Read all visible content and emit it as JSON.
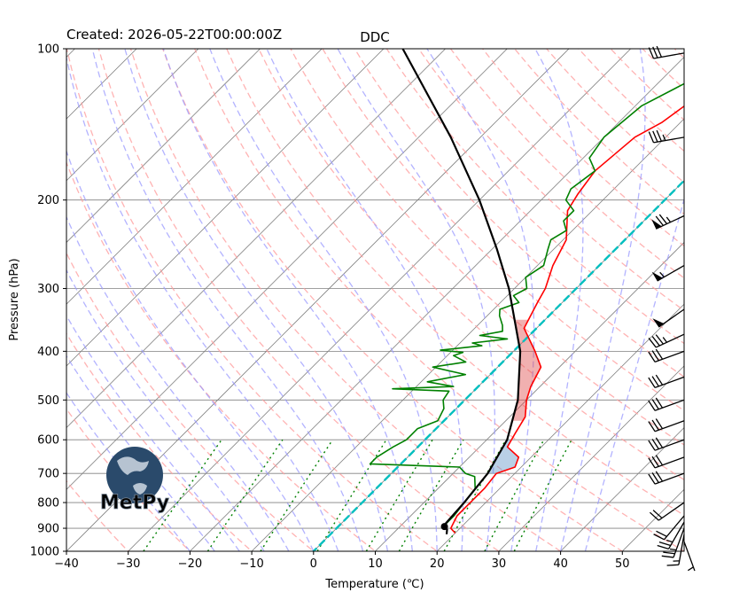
{
  "chart_data": {
    "type": "skew-t",
    "title": "DDC",
    "created_label": "Created: 2026-05-22T00:00:00Z",
    "xlabel": "Temperature (℃)",
    "ylabel": "Pressure (hPa)",
    "xlim": [
      -40,
      60
    ],
    "ylim": [
      1000,
      100
    ],
    "y_scale": "log",
    "x_ticks": [
      -40,
      -30,
      -20,
      -10,
      0,
      10,
      20,
      30,
      40,
      50
    ],
    "y_ticks": [
      100,
      200,
      300,
      400,
      500,
      600,
      700,
      800,
      900,
      1000
    ],
    "grid": true,
    "logo_text": "MetPy",
    "series": [
      {
        "type": "temperature",
        "color": "#ff0000",
        "points": [
          [
            920,
            20
          ],
          [
            900,
            18.5
          ],
          [
            850,
            17.5
          ],
          [
            800,
            17.5
          ],
          [
            750,
            17.5
          ],
          [
            700,
            17
          ],
          [
            680,
            19
          ],
          [
            650,
            18
          ],
          [
            620,
            14.5
          ],
          [
            580,
            13.5
          ],
          [
            540,
            12.5
          ],
          [
            500,
            10
          ],
          [
            470,
            8.5
          ],
          [
            430,
            7
          ],
          [
            400,
            3.5
          ],
          [
            360,
            -2
          ],
          [
            320,
            -4
          ],
          [
            300,
            -5
          ],
          [
            270,
            -7.5
          ],
          [
            240,
            -9.5
          ],
          [
            210,
            -14
          ],
          [
            195,
            -15
          ],
          [
            185,
            -15.5
          ],
          [
            175,
            -16
          ],
          [
            150,
            -15
          ],
          [
            140,
            -13
          ],
          [
            120,
            -11
          ],
          [
            110,
            -6
          ],
          [
            100,
            -3
          ]
        ]
      },
      {
        "type": "dewpoint",
        "color": "#008000",
        "points": [
          [
            900,
            17
          ],
          [
            850,
            17
          ],
          [
            800,
            16.5
          ],
          [
            750,
            16
          ],
          [
            710,
            14
          ],
          [
            700,
            12
          ],
          [
            680,
            10
          ],
          [
            670,
            -5
          ],
          [
            650,
            -5
          ],
          [
            620,
            -4
          ],
          [
            600,
            -3
          ],
          [
            570,
            -3
          ],
          [
            550,
            -1
          ],
          [
            520,
            -2
          ],
          [
            500,
            -3.5
          ],
          [
            480,
            -4
          ],
          [
            475,
            -13.5
          ],
          [
            470,
            -4
          ],
          [
            460,
            -9
          ],
          [
            445,
            -4
          ],
          [
            430,
            -10.5
          ],
          [
            420,
            -6
          ],
          [
            408,
            -9
          ],
          [
            402,
            -8
          ],
          [
            398,
            -12
          ],
          [
            390,
            -6
          ],
          [
            385,
            -8
          ],
          [
            378,
            -3
          ],
          [
            372,
            -8
          ],
          [
            365,
            -5
          ],
          [
            355,
            -6
          ],
          [
            340,
            -8
          ],
          [
            330,
            -9
          ],
          [
            320,
            -7
          ],
          [
            310,
            -9
          ],
          [
            300,
            -8
          ],
          [
            285,
            -10
          ],
          [
            270,
            -9
          ],
          [
            250,
            -11
          ],
          [
            240,
            -12
          ],
          [
            230,
            -11
          ],
          [
            220,
            -13
          ],
          [
            210,
            -13
          ],
          [
            200,
            -16
          ],
          [
            190,
            -17
          ],
          [
            175,
            -16
          ],
          [
            165,
            -19
          ],
          [
            150,
            -20
          ],
          [
            130,
            -19
          ],
          [
            115,
            -15
          ],
          [
            100,
            -11
          ]
        ]
      },
      {
        "type": "parcel_profile",
        "color": "#000000",
        "points": [
          [
            925,
            18.8
          ],
          [
            905,
            18.1
          ],
          [
            893,
            17.2
          ],
          [
            880,
            16.9
          ],
          [
            800,
            16.5
          ],
          [
            700,
            15.6
          ],
          [
            600,
            13.3
          ],
          [
            500,
            8.6
          ],
          [
            400,
            1.1
          ],
          [
            300,
            -10.9
          ],
          [
            250,
            -19.3
          ],
          [
            200,
            -30.0
          ],
          [
            150,
            -44.8
          ],
          [
            100,
            -66.9
          ]
        ]
      },
      {
        "type": "lcl",
        "color": "#000000",
        "pressure": 893,
        "temperature": 17.2
      },
      {
        "type": "cape_shading",
        "color": "#e05050",
        "pressure_range": [
          550,
          345
        ]
      },
      {
        "type": "cin_shading",
        "color": "#6496c8",
        "pressure_range": [
          700,
          600
        ]
      },
      {
        "type": "zero_isotherm",
        "color": "#00bfbf",
        "temperature": 0
      }
    ],
    "reference_lines": {
      "isotherm_color": "#808080",
      "dry_adiabat_color": "#ff9999",
      "moist_adiabat_color": "#9999ff",
      "mixing_ratio_color": "#008000"
    },
    "wind_barbs": [
      {
        "pressure": 957,
        "speed_kt": 5,
        "direction_deg": 160
      },
      {
        "pressure": 925,
        "speed_kt": 15,
        "direction_deg": 190
      },
      {
        "pressure": 900,
        "speed_kt": 25,
        "direction_deg": 200
      },
      {
        "pressure": 875,
        "speed_kt": 25,
        "direction_deg": 210
      },
      {
        "pressure": 850,
        "speed_kt": 20,
        "direction_deg": 220
      },
      {
        "pressure": 800,
        "speed_kt": 20,
        "direction_deg": 235
      },
      {
        "pressure": 700,
        "speed_kt": 30,
        "direction_deg": 250
      },
      {
        "pressure": 650,
        "speed_kt": 30,
        "direction_deg": 250
      },
      {
        "pressure": 600,
        "speed_kt": 30,
        "direction_deg": 250
      },
      {
        "pressure": 550,
        "speed_kt": 30,
        "direction_deg": 250
      },
      {
        "pressure": 500,
        "speed_kt": 30,
        "direction_deg": 250
      },
      {
        "pressure": 450,
        "speed_kt": 30,
        "direction_deg": 250
      },
      {
        "pressure": 400,
        "speed_kt": 30,
        "direction_deg": 250
      },
      {
        "pressure": 370,
        "speed_kt": 35,
        "direction_deg": 245
      },
      {
        "pressure": 330,
        "speed_kt": 50,
        "direction_deg": 235
      },
      {
        "pressure": 270,
        "speed_kt": 55,
        "direction_deg": 240
      },
      {
        "pressure": 215,
        "speed_kt": 75,
        "direction_deg": 245
      },
      {
        "pressure": 150,
        "speed_kt": 35,
        "direction_deg": 260
      },
      {
        "pressure": 102,
        "speed_kt": 30,
        "direction_deg": 260
      }
    ]
  }
}
